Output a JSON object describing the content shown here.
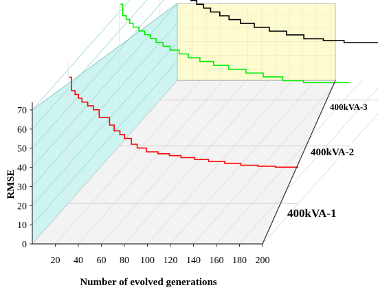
{
  "chart_data": {
    "type": "line",
    "style": "3d-waterfall",
    "xlabel": "Number of evolved generations",
    "ylabel": "RMSE",
    "xlim": [
      0,
      200
    ],
    "ylim": [
      0,
      70
    ],
    "x_ticks": [
      "20",
      "40",
      "60",
      "80",
      "100",
      "120",
      "140",
      "160",
      "180",
      "200"
    ],
    "y_ticks": [
      "0",
      "10",
      "20",
      "30",
      "40",
      "50",
      "60",
      "70"
    ],
    "series": [
      {
        "name": "400kVA-1",
        "color": "#ff0000",
        "x": [
          1,
          3,
          6,
          9,
          12,
          17,
          22,
          27,
          31,
          36,
          40,
          45,
          49,
          55,
          60,
          68,
          78,
          88,
          98,
          110,
          122,
          136,
          150,
          165,
          180,
          200
        ],
        "y": [
          66,
          59,
          57,
          55,
          53,
          51,
          49,
          45,
          45,
          41,
          38,
          36,
          34,
          31,
          29,
          27,
          26,
          25,
          24,
          23,
          22,
          21,
          20,
          19.5,
          19,
          19
        ]
      },
      {
        "name": "400kVA-2",
        "color": "#00ee00",
        "x": [
          1,
          3,
          6,
          9,
          12,
          17,
          22,
          27,
          32,
          38,
          44,
          52,
          60,
          70,
          82,
          95,
          110,
          125,
          142,
          160,
          180,
          200
        ],
        "y": [
          74,
          68,
          66,
          64,
          62,
          60,
          58,
          56,
          54,
          52,
          50,
          48,
          46,
          44,
          42,
          40,
          38,
          36,
          34,
          33,
          33,
          33
        ]
      },
      {
        "name": "400kVA-3",
        "color": "#000000",
        "x": [
          1,
          3,
          6,
          9,
          12,
          17,
          22,
          27,
          32,
          38,
          44,
          52,
          60,
          70,
          82,
          95,
          110,
          125,
          142,
          160,
          180,
          200
        ],
        "y": [
          70,
          64,
          62,
          60,
          58,
          56,
          54,
          52,
          50,
          48,
          46,
          44,
          42,
          40,
          38,
          36,
          34,
          32,
          31,
          30,
          30,
          30
        ]
      }
    ],
    "labels": [
      "400kVA-1",
      "400kVA-2",
      "400kVA-3"
    ]
  }
}
